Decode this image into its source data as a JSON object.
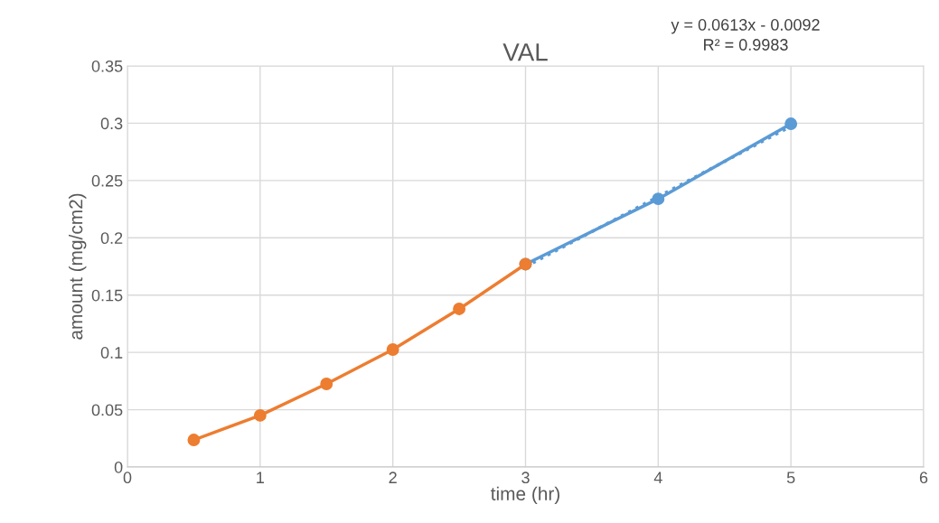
{
  "chart_data": {
    "type": "line",
    "title": "VAL",
    "xlabel": "time (hr)",
    "ylabel": "amount (mg/cm2)",
    "series": [
      {
        "color": "#ed7d31",
        "x": [
          0.5,
          1,
          1.5,
          2,
          2.5,
          3
        ],
        "values": [
          0.0236,
          0.045,
          0.0725,
          0.1025,
          0.138,
          0.177
        ]
      },
      {
        "color": "#5b9bd5",
        "x": [
          3,
          4,
          5
        ],
        "values": [
          0.177,
          0.234,
          0.2995
        ]
      },
      {
        "color": "#5b9bd5",
        "x": [
          3,
          5
        ],
        "values": [
          0.1747,
          0.2973
        ],
        "marker": "none",
        "line_style": "dotted"
      }
    ],
    "annotations": [
      "y = 0.0613x - 0.0092\nR² = 0.9983"
    ],
    "xlim": [
      0,
      6
    ],
    "xticks": [
      0,
      1,
      2,
      3,
      4,
      5,
      6
    ],
    "ylim": [
      0,
      0.35
    ],
    "yticks": [
      0,
      0.05,
      0.1,
      0.15,
      0.2,
      0.25,
      0.3,
      0.35
    ],
    "grid": true,
    "marker": "circle",
    "line_style": "solid",
    "legend": false
  }
}
